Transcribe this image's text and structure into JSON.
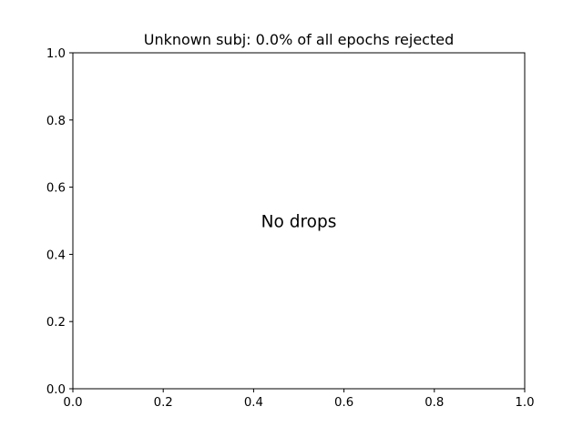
{
  "chart_data": {
    "type": "bar",
    "title": "Unknown subj: 0.0% of all epochs rejected",
    "xlabel": "",
    "ylabel": "",
    "xlim": [
      0.0,
      1.0
    ],
    "ylim": [
      0.0,
      1.0
    ],
    "x_ticks": [
      0.0,
      0.2,
      0.4,
      0.6,
      0.8,
      1.0
    ],
    "x_tick_labels": [
      "0.0",
      "0.2",
      "0.4",
      "0.6",
      "0.8",
      "1.0"
    ],
    "y_ticks": [
      0.0,
      0.2,
      0.4,
      0.6,
      0.8,
      1.0
    ],
    "y_tick_labels": [
      "0.0",
      "0.2",
      "0.4",
      "0.6",
      "0.8",
      "1.0"
    ],
    "categories": [],
    "values": [],
    "grid": false,
    "annotations": [
      {
        "text": "No drops",
        "x": 0.5,
        "y": 0.5
      }
    ]
  }
}
